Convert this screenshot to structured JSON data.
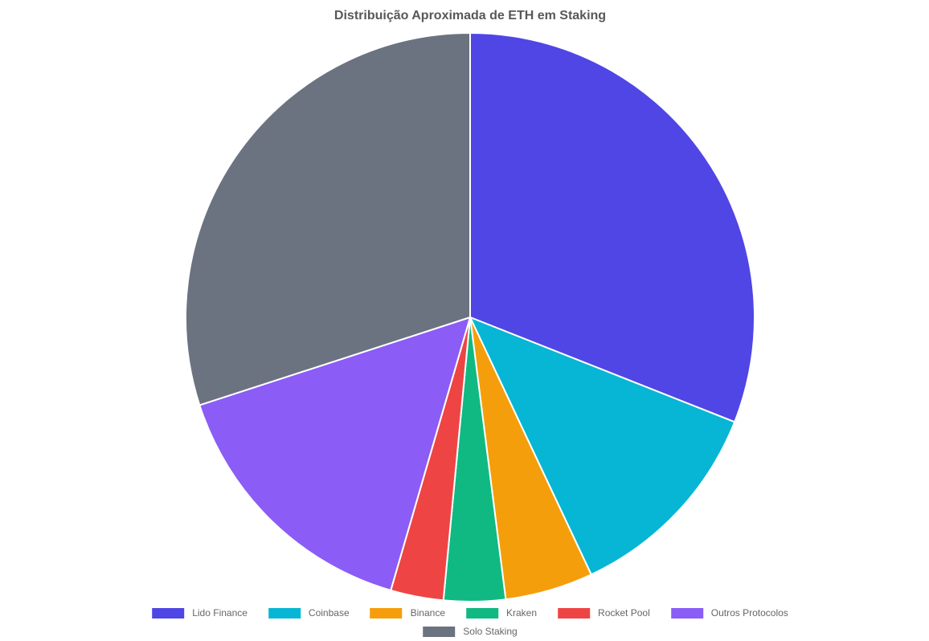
{
  "page": {
    "background_color": "#FFFFFF"
  },
  "chart_data": {
    "type": "pie",
    "title": "Distribuição Aproximada de ETH em Staking",
    "labels": [
      "Lido Finance",
      "Coinbase",
      "Binance",
      "Kraken",
      "Rocket Pool",
      "Outros Protocolos",
      "Solo Staking"
    ],
    "values": [
      31,
      12,
      5,
      3.5,
      3,
      15.5,
      30
    ],
    "unit": "percent",
    "colors": [
      "#4F46E5",
      "#06B6D4",
      "#F59E0B",
      "#10B981",
      "#EF4444",
      "#8B5CF6",
      "#6B7280"
    ],
    "border_color": "#FFFFFF",
    "border_width": 2,
    "start_angle": "top",
    "direction": "clockwise",
    "legend_position": "bottom",
    "legend_rows": [
      [
        "Lido Finance",
        "Coinbase",
        "Binance",
        "Kraken",
        "Rocket Pool",
        "Outros Protocolos"
      ],
      [
        "Solo Staking"
      ]
    ],
    "title_color": "#585858",
    "legend_text_color": "#666666"
  }
}
